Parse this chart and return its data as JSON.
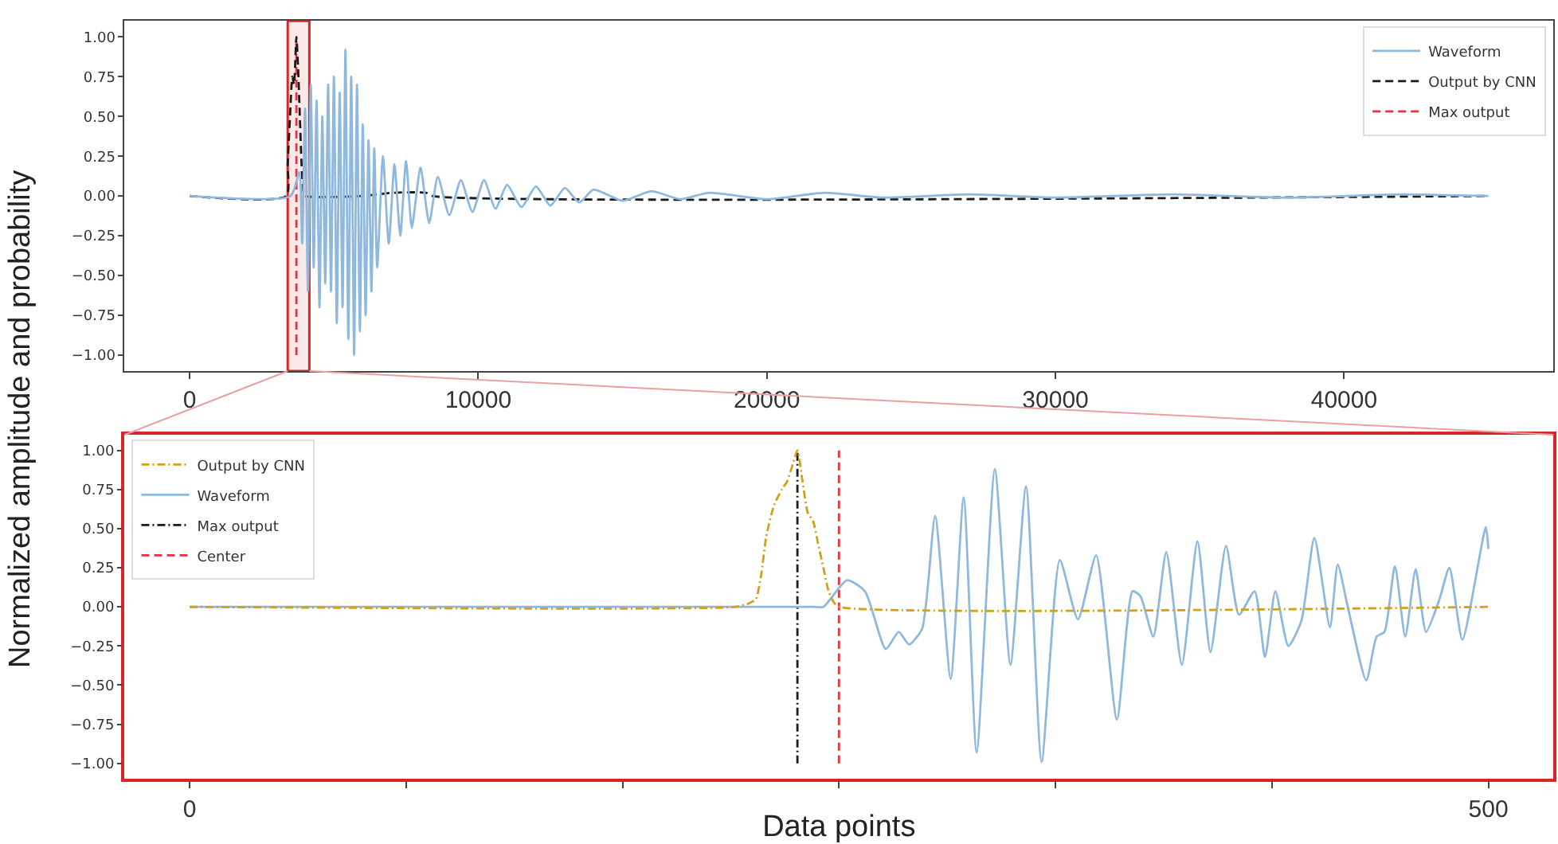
{
  "chart_data": [
    {
      "type": "line",
      "ylabel": "Normalized amplitude and probability",
      "xlim": [
        -2250,
        47250
      ],
      "xticks": [
        0,
        10000,
        20000,
        30000,
        40000
      ],
      "ylim": [
        -1.1,
        1.1
      ],
      "yticks": [
        {
          "value": -1,
          "label": "−1.00"
        },
        {
          "value": -0.75,
          "label": "−0.75"
        },
        {
          "value": -0.5,
          "label": "−0.50"
        },
        {
          "value": -0.25,
          "label": "−0.25"
        },
        {
          "value": 0,
          "label": "0.00"
        },
        {
          "value": 0.25,
          "label": "0.25"
        },
        {
          "value": 0.5,
          "label": "0.50"
        },
        {
          "value": 0.75,
          "label": "0.75"
        },
        {
          "value": 1,
          "label": "1.00"
        }
      ],
      "legend": "top right",
      "grid": false,
      "series": [
        {
          "name": "Waveform",
          "color": "#8fb8de",
          "line_style": "solid",
          "x": [
            0,
            3500,
            3800,
            3900,
            4000,
            4100,
            4200,
            4300,
            4400,
            4500,
            4600,
            4700,
            4800,
            4900,
            5000,
            5100,
            5200,
            5300,
            5400,
            5500,
            5600,
            5700,
            5800,
            5900,
            6000,
            6100,
            6200,
            6300,
            6400,
            6500,
            6700,
            6900,
            7100,
            7300,
            7500,
            7700,
            8000,
            8300,
            8600,
            9000,
            9400,
            9800,
            10200,
            10600,
            11000,
            11500,
            12000,
            12500,
            13000,
            13500,
            14000,
            15000,
            16000,
            17000,
            18000,
            20000,
            22000,
            24000,
            27000,
            30000,
            34000,
            38000,
            42000,
            45000
          ],
          "values": [
            0,
            0,
            0.15,
            -0.3,
            0.55,
            -0.6,
            0.7,
            -0.45,
            0.6,
            -0.7,
            0.5,
            -0.55,
            0.7,
            -0.6,
            0.75,
            -0.8,
            0.65,
            -0.7,
            0.92,
            -0.9,
            0.75,
            -1.0,
            0.7,
            -0.85,
            0.45,
            -0.75,
            0.35,
            -0.6,
            0.3,
            -0.45,
            0.25,
            -0.3,
            0.2,
            -0.25,
            0.22,
            -0.2,
            0.18,
            -0.17,
            0.12,
            -0.12,
            0.1,
            -0.1,
            0.1,
            -0.08,
            0.07,
            -0.07,
            0.06,
            -0.06,
            0.05,
            -0.04,
            0.04,
            -0.03,
            0.03,
            -0.02,
            0.02,
            -0.02,
            0.02,
            -0.01,
            0.01,
            -0.01,
            0.01,
            -0.01,
            0.01,
            0
          ]
        },
        {
          "name": "Output by CNN",
          "color": "#1a1a1a",
          "line_style": "dashed",
          "x": [
            0,
            3350,
            3400,
            3480,
            3560,
            3620,
            3700,
            3760,
            3820,
            3880,
            3950,
            4000,
            6000,
            7000,
            8200,
            8400,
            45000
          ],
          "values": [
            0,
            0,
            0.2,
            0.5,
            0.75,
            0.7,
            1.0,
            0.8,
            0.5,
            0.2,
            0.02,
            0,
            0,
            0.02,
            0.02,
            0,
            0
          ]
        },
        {
          "name": "Max output",
          "color": "#e8323c",
          "line_style": "dashed",
          "x": [
            3700,
            3700
          ],
          "values": [
            -1,
            1
          ]
        }
      ],
      "bands": [
        {
          "axis": "x",
          "from": 3400,
          "to": 4150,
          "color": "#d62728"
        }
      ]
    },
    {
      "type": "line",
      "xlabel": "Data points",
      "xlim": [
        -25,
        525
      ],
      "xticks": [
        0,
        {
          "value": 83.3,
          "label": null
        },
        {
          "value": 166.7,
          "label": null
        },
        {
          "value": 250,
          "label": null
        },
        {
          "value": 333.3,
          "label": null
        },
        {
          "value": 416.7,
          "label": null
        },
        500
      ],
      "ylim": [
        -1.1,
        1.1
      ],
      "yticks": [
        {
          "value": -1,
          "label": "−1.00"
        },
        {
          "value": -0.75,
          "label": "−0.75"
        },
        {
          "value": -0.5,
          "label": "−0.50"
        },
        {
          "value": -0.25,
          "label": "−0.25"
        },
        {
          "value": 0,
          "label": "0.00"
        },
        {
          "value": 0.25,
          "label": "0.25"
        },
        {
          "value": 0.5,
          "label": "0.50"
        },
        {
          "value": 0.75,
          "label": "0.75"
        },
        {
          "value": 1,
          "label": "1.00"
        }
      ],
      "legend": "top left",
      "grid": false,
      "series": [
        {
          "name": "Output by CNN",
          "color": "#d4a017",
          "line_style": "dashdot",
          "x": [
            0,
            210,
            215,
            218,
            220,
            222,
            225,
            228,
            230,
            232,
            234,
            236,
            238,
            240,
            242,
            244,
            246,
            248,
            250,
            500
          ],
          "values": [
            0,
            0,
            0.02,
            0.05,
            0.2,
            0.45,
            0.65,
            0.75,
            0.8,
            0.9,
            1.0,
            0.8,
            0.6,
            0.55,
            0.4,
            0.25,
            0.1,
            0.03,
            0,
            0
          ]
        },
        {
          "name": "Waveform",
          "color": "#8fb8de",
          "line_style": "solid",
          "x": [
            0,
            240,
            244,
            253,
            260,
            268,
            273,
            277,
            282,
            287,
            293,
            298,
            303,
            310,
            316,
            322,
            328,
            335,
            342,
            349,
            357,
            363,
            366,
            371,
            376,
            382,
            388,
            393,
            399,
            404,
            410,
            414,
            418,
            423,
            428,
            433,
            439,
            442,
            446,
            453,
            457,
            460,
            464,
            468,
            472,
            476,
            481,
            485,
            490,
            499,
            500
          ],
          "values": [
            0,
            0,
            0,
            0.17,
            0.1,
            -0.27,
            -0.16,
            -0.24,
            -0.14,
            0.58,
            -0.46,
            0.7,
            -0.93,
            0.88,
            -0.37,
            0.77,
            -0.99,
            0.3,
            -0.08,
            0.33,
            -0.72,
            0.1,
            0.07,
            -0.19,
            0.35,
            -0.37,
            0.42,
            -0.29,
            0.39,
            -0.05,
            0.1,
            -0.32,
            0.1,
            -0.25,
            -0.09,
            0.44,
            -0.13,
            0.27,
            -0.01,
            -0.47,
            -0.19,
            -0.16,
            0.26,
            -0.19,
            0.24,
            -0.16,
            0.04,
            0.25,
            -0.21,
            0.51,
            0.37
          ]
        },
        {
          "name": "Max output",
          "color": "#1a1a1a",
          "line_style": "dashdot",
          "x": [
            234,
            234
          ],
          "values": [
            -1,
            1
          ]
        },
        {
          "name": "Center",
          "color": "#e8323c",
          "line_style": "dashed",
          "x": [
            250,
            250
          ],
          "values": [
            -1,
            1
          ]
        }
      ]
    }
  ]
}
